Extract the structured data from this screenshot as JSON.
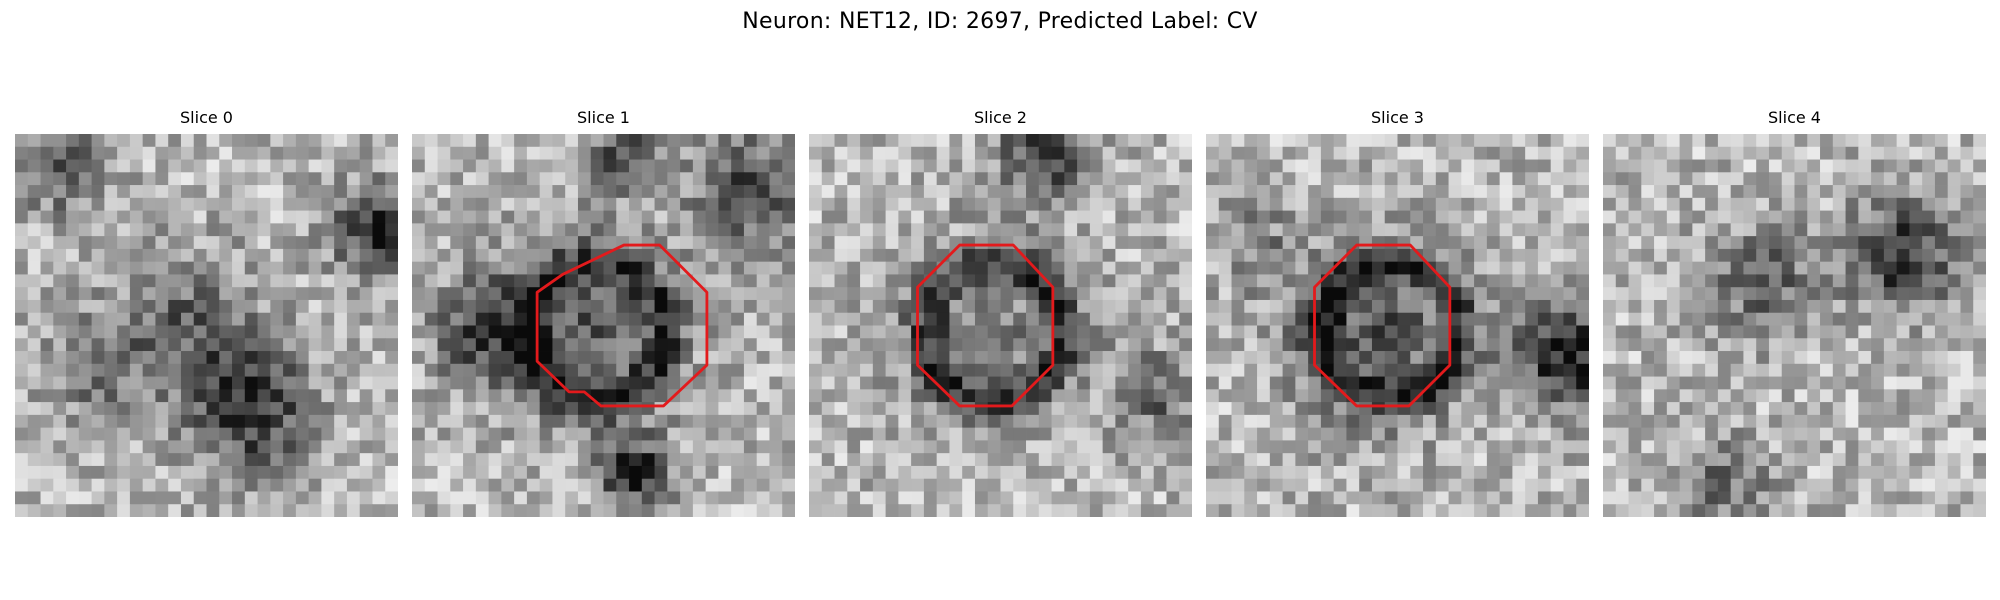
{
  "figure": {
    "title": "Neuron: NET12, ID: 2697, Predicted Label: CV"
  },
  "slices": [
    {
      "title": "Slice 0",
      "has_contour": false
    },
    {
      "title": "Slice 1",
      "has_contour": true
    },
    {
      "title": "Slice 2",
      "has_contour": true
    },
    {
      "title": "Slice 3",
      "has_contour": true
    },
    {
      "title": "Slice 4",
      "has_contour": false
    }
  ],
  "colors": {
    "contour": "#e31a1c",
    "background": "#ffffff"
  },
  "colormap": "grayscale"
}
